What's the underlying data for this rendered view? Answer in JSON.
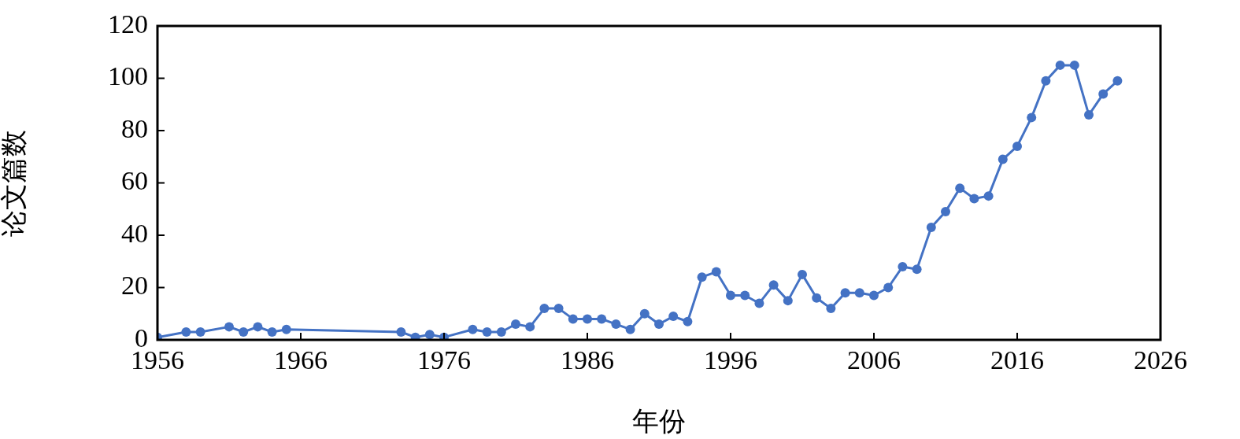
{
  "chart_data": {
    "type": "line",
    "xlabel": "年份",
    "ylabel": "论文篇数",
    "x": [
      1956,
      1958,
      1959,
      1961,
      1962,
      1963,
      1964,
      1965,
      1973,
      1974,
      1975,
      1976,
      1978,
      1979,
      1980,
      1981,
      1982,
      1983,
      1984,
      1985,
      1986,
      1987,
      1988,
      1989,
      1990,
      1991,
      1992,
      1993,
      1994,
      1995,
      1996,
      1997,
      1998,
      1999,
      2000,
      2001,
      2002,
      2003,
      2004,
      2005,
      2006,
      2007,
      2008,
      2009,
      2010,
      2011,
      2012,
      2013,
      2014,
      2015,
      2016,
      2017,
      2018,
      2019,
      2020,
      2021,
      2022,
      2023
    ],
    "series": [
      {
        "color": "#4472c4",
        "values": [
          1,
          3,
          3,
          5,
          3,
          5,
          3,
          4,
          3,
          1,
          2,
          1,
          4,
          3,
          3,
          6,
          5,
          12,
          12,
          8,
          8,
          8,
          6,
          4,
          10,
          6,
          9,
          7,
          24,
          26,
          17,
          17,
          14,
          21,
          15,
          25,
          16,
          12,
          18,
          18,
          17,
          20,
          28,
          27,
          43,
          49,
          58,
          54,
          55,
          69,
          74,
          85,
          99,
          105,
          105,
          86,
          94,
          99
        ]
      }
    ],
    "xlim": [
      1956,
      2026
    ],
    "xticks": [
      1956,
      1966,
      1976,
      1986,
      1996,
      2006,
      2016,
      2026
    ],
    "ylim": [
      0,
      120
    ],
    "yticks": [
      0,
      20,
      40,
      60,
      80,
      100,
      120
    ],
    "marker": "circle",
    "line_style": "solid",
    "legend": false
  }
}
